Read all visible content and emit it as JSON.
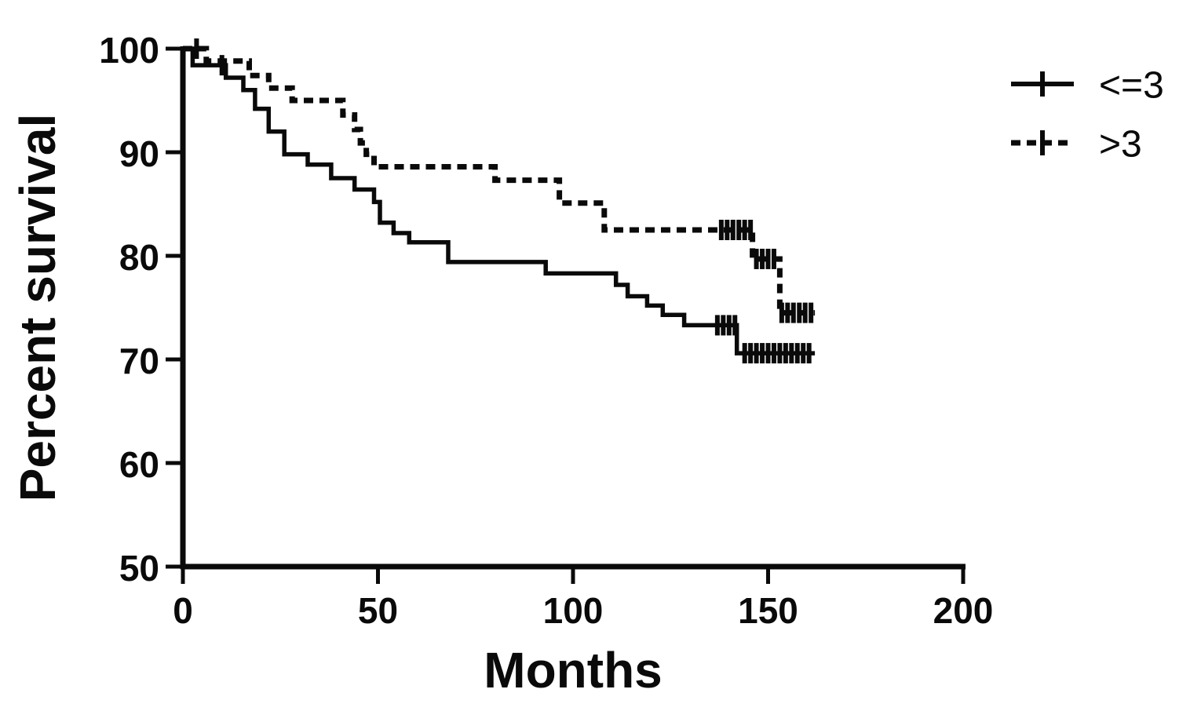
{
  "figure": {
    "background": "#ffffff",
    "ink": "#0a0a0a"
  },
  "chart_data": {
    "type": "line",
    "subtype": "kaplan-meier-step",
    "title": "",
    "xlabel": "Months",
    "ylabel": "Percent survival",
    "xlim": [
      0,
      200
    ],
    "ylim": [
      50,
      100
    ],
    "x_ticks": [
      0,
      50,
      100,
      150,
      200
    ],
    "y_ticks": [
      50,
      60,
      70,
      80,
      90,
      100
    ],
    "grid": false,
    "legend_position": "top-right",
    "series": [
      {
        "name": "<=3",
        "style": "solid",
        "x_unit": "months",
        "y_unit": "percent",
        "points": [
          [
            0,
            100
          ],
          [
            2.5,
            98.4
          ],
          [
            11,
            97.2
          ],
          [
            15.5,
            96.0
          ],
          [
            18.5,
            94.2
          ],
          [
            22,
            92.0
          ],
          [
            26,
            89.8
          ],
          [
            32,
            88.8
          ],
          [
            38,
            87.5
          ],
          [
            44,
            86.4
          ],
          [
            49,
            85.2
          ],
          [
            50.5,
            83.2
          ],
          [
            54,
            82.2
          ],
          [
            58,
            81.3
          ],
          [
            68,
            79.4
          ],
          [
            93,
            78.3
          ],
          [
            111,
            77.2
          ],
          [
            114,
            76.1
          ],
          [
            119,
            75.2
          ],
          [
            123,
            74.3
          ],
          [
            128.5,
            73.3
          ],
          [
            142,
            70.6
          ],
          [
            162,
            70.6
          ]
        ],
        "censor_marks": [
          [
            3.5,
            100
          ],
          [
            10,
            98.4
          ],
          [
            137,
            73.3
          ],
          [
            138.5,
            73.3
          ],
          [
            140,
            73.3
          ],
          [
            141.5,
            73.3
          ],
          [
            144,
            70.6
          ],
          [
            145.5,
            70.6
          ],
          [
            147,
            70.6
          ],
          [
            148.5,
            70.6
          ],
          [
            150,
            70.6
          ],
          [
            151.5,
            70.6
          ],
          [
            153,
            70.6
          ],
          [
            154.5,
            70.6
          ],
          [
            156,
            70.6
          ],
          [
            157.5,
            70.6
          ],
          [
            159,
            70.6
          ],
          [
            160.5,
            70.6
          ]
        ]
      },
      {
        "name": ">3",
        "style": "dashed",
        "x_unit": "months",
        "y_unit": "percent",
        "points": [
          [
            0,
            100
          ],
          [
            6,
            98.8
          ],
          [
            17,
            97.4
          ],
          [
            22,
            96.2
          ],
          [
            28,
            95.0
          ],
          [
            41,
            93.6
          ],
          [
            44,
            92.2
          ],
          [
            45.5,
            90.9
          ],
          [
            47,
            89.8
          ],
          [
            49,
            88.6
          ],
          [
            80,
            87.3
          ],
          [
            96.5,
            85.1
          ],
          [
            108,
            82.5
          ],
          [
            146,
            79.7
          ],
          [
            153,
            74.5
          ],
          [
            162,
            74.5
          ]
        ],
        "censor_marks": [
          [
            138,
            82.5
          ],
          [
            139.5,
            82.5
          ],
          [
            141,
            82.5
          ],
          [
            142.5,
            82.5
          ],
          [
            144,
            82.5
          ],
          [
            145.5,
            82.5
          ],
          [
            147,
            79.7
          ],
          [
            148.5,
            79.7
          ],
          [
            150,
            79.7
          ],
          [
            151.5,
            79.7
          ],
          [
            153.5,
            74.5
          ],
          [
            155,
            74.5
          ],
          [
            156.5,
            74.5
          ],
          [
            158,
            74.5
          ],
          [
            159.5,
            74.5
          ],
          [
            161,
            74.5
          ]
        ]
      }
    ]
  },
  "legend": {
    "items": [
      {
        "label": "<=3",
        "style": "solid"
      },
      {
        "label": ">3",
        "style": "dashed"
      }
    ]
  }
}
